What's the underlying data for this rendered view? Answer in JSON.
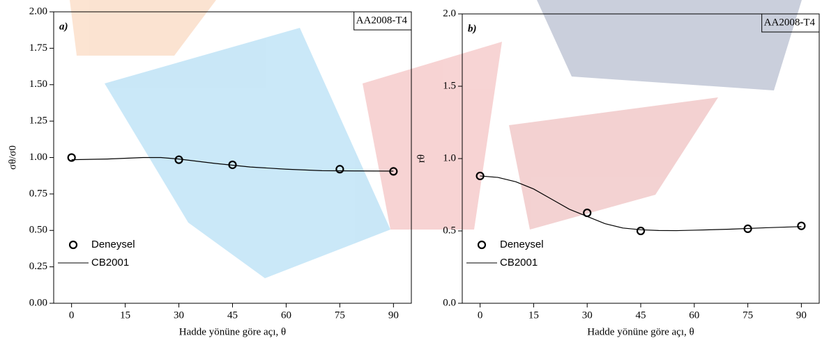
{
  "chart_data": [
    {
      "type": "line",
      "panel_label": "a)",
      "annotation": "AA2008-T4",
      "xlabel": "Hadde yönüne göre açı, θ",
      "ylabel": "σθ/σ0",
      "xlim": [
        -5,
        95
      ],
      "xticks": [
        0,
        15,
        30,
        45,
        60,
        75,
        90
      ],
      "ylim": [
        0,
        2
      ],
      "yticks": [
        {
          "value": 0,
          "label": "0.00"
        },
        {
          "value": 0.25,
          "label": "0.25"
        },
        {
          "value": 0.5,
          "label": "0.50"
        },
        {
          "value": 0.75,
          "label": "0.75"
        },
        {
          "value": 1,
          "label": "1.00"
        },
        {
          "value": 1.25,
          "label": "1.25"
        },
        {
          "value": 1.5,
          "label": "1.50"
        },
        {
          "value": 1.75,
          "label": "1.75"
        },
        {
          "value": 2,
          "label": "2.00"
        }
      ],
      "legend": "lower left",
      "series": [
        {
          "name": "Deneysel",
          "style": "marker",
          "color": "#000000",
          "x": [
            0,
            30,
            45,
            75,
            90
          ],
          "values": [
            1.0,
            0.985,
            0.95,
            0.92,
            0.905
          ]
        },
        {
          "name": "CB2001",
          "style": "line",
          "color": "#000000",
          "x": [
            0,
            10,
            20,
            25,
            30,
            40,
            50,
            60,
            70,
            80,
            90
          ],
          "values": [
            0.985,
            0.99,
            1.0,
            1.0,
            0.99,
            0.96,
            0.935,
            0.92,
            0.91,
            0.908,
            0.907
          ]
        }
      ]
    },
    {
      "type": "line",
      "panel_label": "b)",
      "annotation": "AA2008-T4",
      "xlabel": "Hadde yönüne göre açı, θ",
      "ylabel": "rθ",
      "xlim": [
        -5,
        95
      ],
      "xticks": [
        0,
        15,
        30,
        45,
        60,
        75,
        90
      ],
      "ylim": [
        0,
        2
      ],
      "yticks": [
        {
          "value": 0,
          "label": "0.0"
        },
        {
          "value": 0.5,
          "label": "0.5"
        },
        {
          "value": 1,
          "label": "1.0"
        },
        {
          "value": 1.5,
          "label": "1.5"
        },
        {
          "value": 2,
          "label": "2.0"
        }
      ],
      "legend": "lower left",
      "series": [
        {
          "name": "Deneysel",
          "style": "marker",
          "color": "#000000",
          "x": [
            0,
            30,
            45,
            75,
            90
          ],
          "values": [
            0.88,
            0.625,
            0.5,
            0.515,
            0.535
          ]
        },
        {
          "name": "CB2001",
          "style": "line",
          "color": "#000000",
          "x": [
            0,
            5,
            10,
            15,
            20,
            25,
            30,
            35,
            40,
            45,
            50,
            55,
            60,
            70,
            80,
            90
          ],
          "values": [
            0.88,
            0.87,
            0.84,
            0.79,
            0.72,
            0.65,
            0.6,
            0.55,
            0.52,
            0.508,
            0.503,
            0.502,
            0.505,
            0.512,
            0.522,
            0.53
          ]
        }
      ]
    }
  ]
}
